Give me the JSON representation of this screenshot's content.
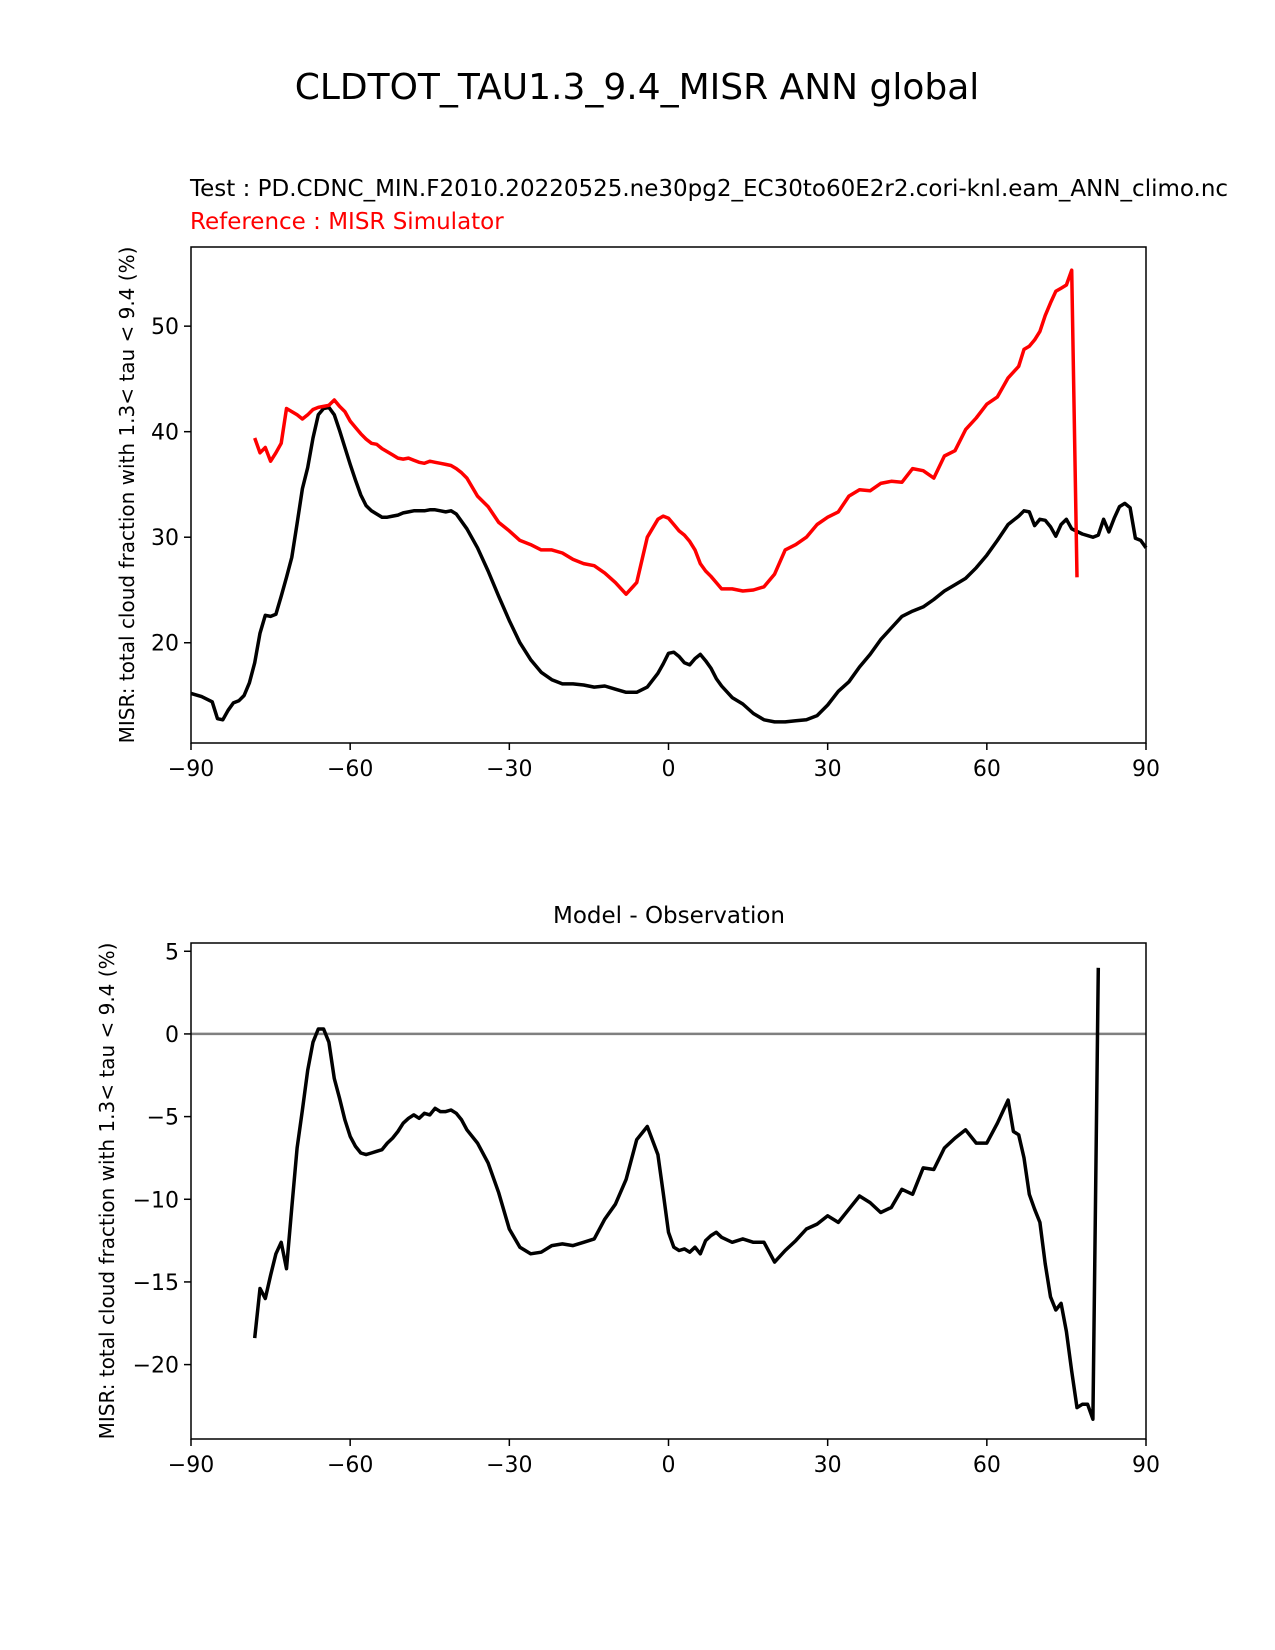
{
  "figure_title": "CLDTOT_TAU1.3_9.4_MISR ANN global",
  "chart_data": [
    {
      "type": "line",
      "title_test": "Test : PD.CDNC_MIN.F2010.20220525.ne30pg2_EC30to60E2r2.cori-knl.eam_ANN_climo.nc",
      "title_reference": "Reference : MISR Simulator",
      "xlabel": "",
      "ylabel": "MISR: total cloud fraction with 1.3< tau < 9.4 (%)",
      "xlim": [
        -90,
        90
      ],
      "ylim": [
        10.5,
        57.5
      ],
      "xticks": [
        -90,
        -60,
        -30,
        0,
        30,
        60,
        90
      ],
      "xtick_labels": [
        "−90",
        "−60",
        "−30",
        "0",
        "30",
        "60",
        "90"
      ],
      "yticks": [
        20,
        30,
        40,
        50
      ],
      "ytick_labels": [
        "20",
        "30",
        "40",
        "50"
      ],
      "series": [
        {
          "name": "Test",
          "color": "#000000",
          "x": [
            -90,
            -88,
            -86,
            -85,
            -84,
            -83,
            -82,
            -81,
            -80,
            -79,
            -78,
            -77,
            -76,
            -75,
            -74,
            -73,
            -72,
            -71,
            -70,
            -69,
            -68,
            -67,
            -66,
            -65,
            -64,
            -63,
            -62,
            -61,
            -60,
            -59,
            -58,
            -57,
            -56,
            -55,
            -54,
            -53,
            -52,
            -51,
            -50,
            -49,
            -48,
            -47,
            -46,
            -45,
            -44,
            -43,
            -42,
            -41,
            -40,
            -38,
            -36,
            -34,
            -32,
            -30,
            -28,
            -26,
            -24,
            -22,
            -20,
            -18,
            -16,
            -14,
            -12,
            -10,
            -8,
            -6,
            -4,
            -2,
            -1,
            0,
            1,
            2,
            3,
            4,
            5,
            6,
            7,
            8,
            9,
            10,
            12,
            14,
            16,
            18,
            20,
            22,
            24,
            26,
            28,
            30,
            32,
            34,
            36,
            38,
            40,
            42,
            44,
            46,
            48,
            50,
            52,
            54,
            56,
            58,
            60,
            62,
            64,
            66,
            67,
            68,
            69,
            70,
            71,
            72,
            73,
            74,
            75,
            76,
            78,
            80,
            81,
            82,
            83,
            84,
            85,
            86,
            87,
            88,
            89,
            90
          ],
          "values": [
            15.2,
            14.9,
            14.4,
            12.8,
            12.7,
            13.6,
            14.3,
            14.5,
            15.0,
            16.2,
            18.1,
            20.9,
            22.6,
            22.5,
            22.7,
            24.4,
            26.2,
            28.1,
            31.3,
            34.6,
            36.6,
            39.4,
            41.6,
            42.2,
            42.3,
            41.6,
            40.1,
            38.5,
            36.9,
            35.4,
            34.0,
            33.0,
            32.5,
            32.2,
            31.9,
            31.9,
            32.0,
            32.1,
            32.3,
            32.4,
            32.5,
            32.5,
            32.5,
            32.6,
            32.6,
            32.5,
            32.4,
            32.5,
            32.2,
            30.8,
            29.0,
            26.8,
            24.4,
            22.1,
            20.0,
            18.4,
            17.2,
            16.5,
            16.1,
            16.1,
            16.0,
            15.8,
            15.9,
            15.6,
            15.3,
            15.3,
            15.8,
            17.1,
            18.0,
            19.0,
            19.1,
            18.7,
            18.1,
            17.9,
            18.5,
            18.9,
            18.3,
            17.6,
            16.6,
            15.9,
            14.8,
            14.2,
            13.3,
            12.7,
            12.5,
            12.5,
            12.6,
            12.7,
            13.1,
            14.1,
            15.4,
            16.3,
            17.7,
            18.9,
            20.3,
            21.4,
            22.5,
            23.0,
            23.4,
            24.1,
            24.9,
            25.5,
            26.1,
            27.1,
            28.3,
            29.7,
            31.2,
            32.0,
            32.5,
            32.4,
            31.1,
            31.7,
            31.6,
            31.0,
            30.1,
            31.2,
            31.7,
            30.8,
            30.3,
            30.0,
            30.2,
            31.7,
            30.5,
            31.8,
            32.9,
            33.2,
            32.8,
            29.9,
            29.7,
            29.0
          ]
        },
        {
          "name": "Reference",
          "color": "#ff0000",
          "x": [
            -78,
            -77,
            -76,
            -75,
            -74,
            -73,
            -72,
            -71,
            -70,
            -69,
            -68,
            -67,
            -66,
            -65,
            -64,
            -63,
            -62,
            -61,
            -60,
            -59,
            -58,
            -57,
            -56,
            -55,
            -54,
            -53,
            -52,
            -51,
            -50,
            -49,
            -48,
            -47,
            -46,
            -45,
            -44,
            -43,
            -42,
            -41,
            -40,
            -39,
            -38,
            -36,
            -34,
            -32,
            -30,
            -28,
            -26,
            -24,
            -22,
            -20,
            -18,
            -16,
            -14,
            -12,
            -10,
            -8,
            -6,
            -4,
            -2,
            -1,
            0,
            1,
            2,
            3,
            4,
            5,
            6,
            7,
            8,
            9,
            10,
            12,
            14,
            16,
            18,
            20,
            22,
            24,
            26,
            28,
            30,
            32,
            34,
            36,
            38,
            40,
            42,
            44,
            46,
            48,
            50,
            52,
            54,
            56,
            58,
            60,
            62,
            64,
            66,
            67,
            68,
            69,
            70,
            71,
            72,
            73,
            74,
            75,
            76,
            77,
            78,
            79,
            80,
            81,
            82
          ],
          "values": [
            39.4,
            38.0,
            38.5,
            37.2,
            38.0,
            38.9,
            42.2,
            41.9,
            41.6,
            41.2,
            41.6,
            42.1,
            42.3,
            42.4,
            42.5,
            43.0,
            42.4,
            41.9,
            41.0,
            40.4,
            39.8,
            39.3,
            38.9,
            38.8,
            38.4,
            38.1,
            37.8,
            37.5,
            37.4,
            37.5,
            37.3,
            37.1,
            37.0,
            37.2,
            37.1,
            37.0,
            36.9,
            36.8,
            36.5,
            36.1,
            35.6,
            33.9,
            32.9,
            31.4,
            30.6,
            29.7,
            29.3,
            28.8,
            28.8,
            28.5,
            27.9,
            27.5,
            27.3,
            26.6,
            25.7,
            24.6,
            25.7,
            30.0,
            31.7,
            32.0,
            31.8,
            31.2,
            30.6,
            30.2,
            29.6,
            28.8,
            27.5,
            26.8,
            26.3,
            25.7,
            25.1,
            25.1,
            24.9,
            25.0,
            25.3,
            26.5,
            28.8,
            29.3,
            30.0,
            31.2,
            31.9,
            32.4,
            33.9,
            34.5,
            34.4,
            35.1,
            35.3,
            35.2,
            36.5,
            36.3,
            35.6,
            37.7,
            38.2,
            40.2,
            41.3,
            42.6,
            43.3,
            45.1,
            46.2,
            47.8,
            48.1,
            48.7,
            49.5,
            51.0,
            52.2,
            53.3,
            53.6,
            53.9,
            55.3,
            26.2,
            null,
            null,
            null,
            null,
            null
          ],
          "x_clip": [
            -78,
            82
          ]
        }
      ]
    },
    {
      "type": "line",
      "title": "Model - Observation",
      "xlabel": "",
      "ylabel": "MISR: total cloud fraction with 1.3< tau < 9.4 (%)",
      "xlim": [
        -90,
        90
      ],
      "ylim": [
        -24.5,
        5.5
      ],
      "xticks": [
        -90,
        -60,
        -30,
        0,
        30,
        60,
        90
      ],
      "xtick_labels": [
        "−90",
        "−60",
        "−30",
        "0",
        "30",
        "60",
        "90"
      ],
      "yticks": [
        -20,
        -15,
        -10,
        -5,
        0,
        5
      ],
      "ytick_labels": [
        "−20",
        "−15",
        "−10",
        "−5",
        "0",
        "5"
      ],
      "zero_line": 0,
      "zero_line_color": "#808080",
      "series": [
        {
          "name": "Model - Observation",
          "color": "#000000",
          "x": [
            -78,
            -77,
            -76,
            -75,
            -74,
            -73,
            -72,
            -71,
            -70,
            -69,
            -68,
            -67,
            -66,
            -65,
            -64,
            -63,
            -62,
            -61,
            -60,
            -59,
            -58,
            -57,
            -56,
            -55,
            -54,
            -53,
            -52,
            -51,
            -50,
            -49,
            -48,
            -47,
            -46,
            -45,
            -44,
            -43,
            -42,
            -41,
            -40,
            -39,
            -38,
            -36,
            -34,
            -32,
            -30,
            -28,
            -26,
            -24,
            -22,
            -20,
            -18,
            -16,
            -14,
            -12,
            -10,
            -8,
            -6,
            -4,
            -2,
            -1,
            0,
            1,
            2,
            3,
            4,
            5,
            6,
            7,
            8,
            9,
            10,
            12,
            14,
            16,
            18,
            20,
            22,
            24,
            26,
            28,
            30,
            32,
            34,
            36,
            38,
            40,
            42,
            44,
            46,
            48,
            50,
            52,
            54,
            56,
            58,
            60,
            62,
            64,
            65,
            66,
            67,
            68,
            69,
            70,
            71,
            72,
            73,
            74,
            75,
            76,
            77,
            78,
            79,
            80,
            81,
            82
          ],
          "values": [
            -18.4,
            -15.4,
            -16.0,
            -14.6,
            -13.3,
            -12.6,
            -14.2,
            -10.5,
            -6.9,
            -4.6,
            -2.2,
            -0.5,
            0.3,
            0.3,
            -0.5,
            -2.7,
            -3.9,
            -5.2,
            -6.2,
            -6.8,
            -7.2,
            -7.3,
            -7.2,
            -7.1,
            -7.0,
            -6.6,
            -6.3,
            -5.9,
            -5.4,
            -5.1,
            -4.9,
            -5.1,
            -4.8,
            -4.9,
            -4.5,
            -4.7,
            -4.7,
            -4.6,
            -4.8,
            -5.2,
            -5.8,
            -6.6,
            -7.8,
            -9.6,
            -11.8,
            -12.9,
            -13.3,
            -13.2,
            -12.8,
            -12.7,
            -12.8,
            -12.6,
            -12.4,
            -11.2,
            -10.3,
            -8.8,
            -6.4,
            -5.6,
            -7.3,
            -9.6,
            -12.0,
            -12.9,
            -13.1,
            -13.0,
            -13.2,
            -12.9,
            -13.3,
            -12.5,
            -12.2,
            -12.0,
            -12.3,
            -12.6,
            -12.4,
            -12.6,
            -12.6,
            -13.8,
            -13.1,
            -12.5,
            -11.8,
            -11.5,
            -11.0,
            -11.4,
            -10.6,
            -9.8,
            -10.2,
            -10.8,
            -10.5,
            -9.4,
            -9.7,
            -8.1,
            -8.2,
            -6.9,
            -6.3,
            -5.8,
            -6.6,
            -6.6,
            -5.4,
            -4.0,
            -5.9,
            -6.1,
            -7.5,
            -9.7,
            -10.6,
            -11.4,
            -13.9,
            -15.9,
            -16.7,
            -16.3,
            -18.0,
            -20.4,
            -22.6,
            -22.4,
            -22.4,
            -23.3,
            4.0,
            null
          ],
          "x_clip": [
            -78,
            82
          ]
        }
      ]
    }
  ]
}
